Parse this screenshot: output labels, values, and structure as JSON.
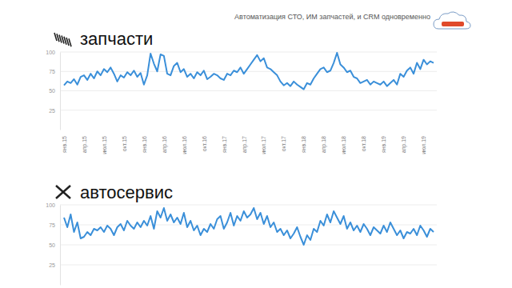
{
  "header": {
    "text": "Автоматизация СТО, ИМ запчастей, и CRM одновременно"
  },
  "chart_data": [
    {
      "type": "line",
      "title": "запчасти",
      "color": "#3a8fd9",
      "grid": true,
      "categories": [
        "янв.15",
        null,
        null,
        null,
        null,
        null,
        "апр.15",
        null,
        null,
        null,
        null,
        null,
        "июл.15",
        null,
        null,
        null,
        null,
        null,
        "окт.15",
        null,
        null,
        null,
        null,
        null,
        "янв.16",
        null,
        null,
        null,
        null,
        null,
        "апр.16",
        null,
        null,
        null,
        null,
        null,
        "июл.16",
        null,
        null,
        null,
        null,
        null,
        "окт.16",
        null,
        null,
        null,
        null,
        null,
        "янв.17",
        null,
        null,
        null,
        null,
        null,
        "апр.17",
        null,
        null,
        null,
        null,
        null,
        "июл.17",
        null,
        null,
        null,
        null,
        null,
        "окт.17",
        null,
        null,
        null,
        null,
        null,
        "янв.18",
        null,
        null,
        null,
        null,
        null,
        "апр.18",
        null,
        null,
        null,
        null,
        null,
        "июл.18",
        null,
        null,
        null,
        null,
        null,
        "окт.18",
        null,
        null,
        null,
        null,
        null,
        "янв.19",
        null,
        null,
        null,
        null,
        null,
        "апр.19",
        null,
        null,
        null,
        null,
        null,
        "июл.19",
        null,
        null,
        null
      ],
      "values": [
        57,
        62,
        60,
        65,
        58,
        68,
        70,
        64,
        72,
        66,
        75,
        70,
        78,
        74,
        80,
        72,
        62,
        70,
        67,
        74,
        70,
        76,
        68,
        73,
        58,
        70,
        98,
        85,
        75,
        97,
        95,
        72,
        70,
        82,
        86,
        74,
        78,
        68,
        72,
        66,
        74,
        70,
        76,
        65,
        68,
        72,
        70,
        66,
        64,
        72,
        70,
        76,
        74,
        80,
        72,
        78,
        84,
        90,
        96,
        88,
        92,
        80,
        78,
        74,
        70,
        62,
        57,
        60,
        56,
        62,
        58,
        55,
        52,
        60,
        58,
        66,
        72,
        78,
        80,
        74,
        76,
        86,
        99,
        84,
        80,
        74,
        76,
        68,
        66,
        60,
        62,
        64,
        58,
        62,
        60,
        58,
        62,
        56,
        60,
        64,
        58,
        72,
        68,
        76,
        80,
        72,
        86,
        78,
        90,
        84,
        88,
        86
      ],
      "ylim": [
        0,
        100
      ],
      "yticks": [
        25,
        50,
        75,
        100
      ]
    },
    {
      "type": "line",
      "title": "автосервис",
      "color": "#3a8fd9",
      "grid": true,
      "tick_labels": "y",
      "categories": [
        null,
        null,
        null,
        null,
        null,
        null,
        null,
        null,
        null,
        null,
        null,
        null,
        null,
        null,
        null,
        null,
        null,
        null,
        null,
        null,
        null,
        null,
        null,
        null,
        null,
        null,
        null,
        null,
        null,
        null,
        null,
        null,
        null,
        null,
        null,
        null,
        null,
        null,
        null,
        null,
        null,
        null,
        null,
        null,
        null,
        null,
        null,
        null,
        null,
        null,
        null,
        null,
        null,
        null,
        null,
        null,
        null,
        null,
        null,
        null,
        null,
        null,
        null,
        null,
        null,
        null,
        null,
        null,
        null,
        null,
        null,
        null,
        null,
        null,
        null,
        null,
        null,
        null,
        null,
        null,
        null,
        null,
        null,
        null,
        null,
        null,
        null,
        null,
        null,
        null,
        null,
        null,
        null,
        null,
        null,
        null,
        null,
        null,
        null,
        null,
        null,
        null,
        null,
        null,
        null,
        null,
        null,
        null,
        null,
        null,
        null,
        null
      ],
      "values": [
        84,
        72,
        88,
        66,
        78,
        58,
        60,
        66,
        62,
        70,
        68,
        72,
        66,
        74,
        70,
        62,
        72,
        76,
        68,
        80,
        74,
        70,
        78,
        72,
        80,
        74,
        86,
        70,
        92,
        84,
        96,
        80,
        88,
        78,
        84,
        76,
        90,
        72,
        80,
        68,
        74,
        62,
        70,
        66,
        76,
        70,
        82,
        86,
        70,
        78,
        90,
        74,
        86,
        80,
        92,
        84,
        88,
        96,
        82,
        90,
        76,
        86,
        72,
        78,
        66,
        70,
        62,
        68,
        58,
        64,
        72,
        60,
        50,
        62,
        56,
        70,
        66,
        80,
        74,
        88,
        78,
        92,
        84,
        76,
        86,
        70,
        78,
        68,
        74,
        66,
        76,
        70,
        62,
        72,
        68,
        64,
        74,
        66,
        78,
        70,
        62,
        68,
        58,
        66,
        64,
        70,
        62,
        74,
        68,
        60,
        70,
        66
      ],
      "ylim": [
        0,
        100
      ],
      "yticks": [
        25,
        50,
        75,
        100
      ]
    }
  ]
}
